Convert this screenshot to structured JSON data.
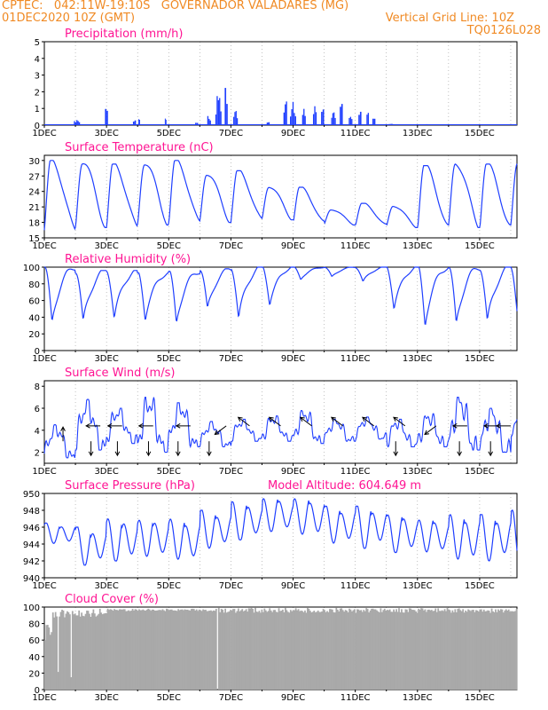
{
  "header": {
    "line1": "CPTEC:   042:11W-19:10S   GOVERNADOR VALADARES (MG)",
    "line2": "01DEC2020 10Z (GMT)",
    "grid_note": "Vertical Grid Line: 10Z",
    "code": "TQ0126L028"
  },
  "colors": {
    "series": "#1f3fff",
    "cloud": "#a9a9a9",
    "title": "#ff1493",
    "header": "#f08a24",
    "grid": "#999999"
  },
  "chart_data": [
    {
      "type": "bar",
      "title": "Precipitation (mm/h)",
      "ylim": [
        0,
        5
      ],
      "yticks": [
        "0",
        "1",
        "2",
        "3",
        "4",
        "5"
      ],
      "xticks": [
        "1DEC",
        "3DEC",
        "5DEC",
        "7DEC",
        "9DEC",
        "11DEC",
        "13DEC",
        "15DEC"
      ],
      "x_range_days": [
        0,
        15
      ],
      "events": [
        {
          "day": 1.05,
          "width": 0.2,
          "peak": 0.4
        },
        {
          "day": 2.0,
          "width": 0.1,
          "peak": 1.3
        },
        {
          "day": 2.9,
          "width": 0.1,
          "peak": 0.5
        },
        {
          "day": 3.05,
          "width": 0.05,
          "peak": 0.6
        },
        {
          "day": 3.9,
          "width": 0.05,
          "peak": 0.5
        },
        {
          "day": 4.9,
          "width": 0.1,
          "peak": 0.3
        },
        {
          "day": 5.3,
          "width": 0.12,
          "peak": 0.8
        },
        {
          "day": 5.6,
          "width": 0.2,
          "peak": 2.0
        },
        {
          "day": 5.85,
          "width": 0.1,
          "peak": 2.6
        },
        {
          "day": 6.15,
          "width": 0.15,
          "peak": 1.2
        },
        {
          "day": 7.2,
          "width": 0.1,
          "peak": 0.2
        },
        {
          "day": 7.75,
          "width": 0.12,
          "peak": 2.2
        },
        {
          "day": 8.0,
          "width": 0.2,
          "peak": 1.4
        },
        {
          "day": 8.35,
          "width": 0.12,
          "peak": 1.0
        },
        {
          "day": 8.7,
          "width": 0.12,
          "peak": 1.2
        },
        {
          "day": 8.95,
          "width": 0.1,
          "peak": 1.8
        },
        {
          "day": 9.3,
          "width": 0.15,
          "peak": 1.0
        },
        {
          "day": 9.55,
          "width": 0.1,
          "peak": 1.6
        },
        {
          "day": 9.85,
          "width": 0.12,
          "peak": 0.8
        },
        {
          "day": 10.15,
          "width": 0.1,
          "peak": 1.0
        },
        {
          "day": 10.4,
          "width": 0.08,
          "peak": 1.4
        },
        {
          "day": 10.6,
          "width": 0.1,
          "peak": 0.5
        },
        {
          "day": 11.2,
          "width": 0.25,
          "peak": 0.12
        },
        {
          "day": 12.3,
          "width": 0.2,
          "peak": 0.06
        },
        {
          "day": 13.2,
          "width": 0.2,
          "peak": 0.05
        },
        {
          "day": 14.5,
          "width": 0.2,
          "peak": 0.05
        }
      ]
    },
    {
      "type": "line",
      "title": "Surface Temperature (nC)",
      "ylim": [
        15,
        31
      ],
      "yticks": [
        "15",
        "18",
        "21",
        "24",
        "27",
        "30"
      ],
      "xticks": [
        "1DEC",
        "3DEC",
        "5DEC",
        "7DEC",
        "9DEC",
        "11DEC",
        "13DEC",
        "15DEC"
      ],
      "x_range_days": [
        0,
        15
      ],
      "daily_min": [
        16.5,
        17.0,
        17.0,
        17.5,
        18.0,
        18.0,
        18.5,
        18.5,
        18.0,
        17.5,
        17.5,
        17.0,
        17.0,
        17.0,
        17.0,
        16.8
      ],
      "daily_max": [
        30.0,
        29.8,
        29.3,
        29.6,
        30.0,
        27.5,
        28.0,
        25.0,
        24.8,
        20.5,
        21.7,
        21.2,
        29.0,
        29.5,
        29.3,
        29.5
      ]
    },
    {
      "type": "line",
      "title": "Relative Humidity (%)",
      "ylim": [
        0,
        100
      ],
      "yticks": [
        "0",
        "20",
        "40",
        "60",
        "80",
        "100"
      ],
      "xticks": [
        "1DEC",
        "3DEC",
        "5DEC",
        "7DEC",
        "9DEC",
        "11DEC",
        "13DEC",
        "15DEC"
      ],
      "x_range_days": [
        0,
        15
      ],
      "daily_max": [
        100,
        96,
        96,
        93,
        95,
        98,
        100,
        100,
        100,
        100,
        100,
        100,
        100,
        100,
        100,
        100
      ],
      "daily_min": [
        32,
        32,
        38,
        37,
        32,
        48,
        37,
        55,
        85,
        88,
        82,
        50,
        30,
        30,
        32,
        28
      ]
    },
    {
      "type": "line",
      "title": "Surface Wind (m/s)",
      "ylim": [
        1,
        8.5
      ],
      "yticks": [
        "2",
        "4",
        "6",
        "8"
      ],
      "xticks": [
        "1DEC",
        "3DEC",
        "5DEC",
        "7DEC",
        "9DEC",
        "11DEC",
        "13DEC",
        "15DEC"
      ],
      "x_range_days": [
        0,
        15
      ],
      "daily_peak": [
        4.5,
        6.8,
        6.0,
        7.0,
        6.5,
        4.8,
        5.0,
        5.3,
        5.8,
        5.0,
        5.2,
        5.0,
        5.5,
        7.0,
        6.0,
        5.5
      ],
      "daily_trough": [
        1.5,
        2.2,
        2.8,
        2.0,
        2.5,
        2.5,
        3.0,
        3.0,
        2.8,
        3.0,
        3.2,
        2.5,
        2.5,
        2.2,
        2.0,
        3.5
      ],
      "arrows": [
        {
          "day": 0.6,
          "dir": "N",
          "speed": 2
        },
        {
          "day": 1.8,
          "dir": "W",
          "speed": 2
        },
        {
          "day": 2.5,
          "dir": "W",
          "speed": 2
        },
        {
          "day": 1.5,
          "dir": "S",
          "speed": 2
        },
        {
          "day": 2.35,
          "dir": "S",
          "speed": 2
        },
        {
          "day": 3.5,
          "dir": "W",
          "speed": 2
        },
        {
          "day": 3.35,
          "dir": "S",
          "speed": 2
        },
        {
          "day": 4.3,
          "dir": "S",
          "speed": 2
        },
        {
          "day": 4.7,
          "dir": "W",
          "speed": 2
        },
        {
          "day": 5.3,
          "dir": "S",
          "speed": 2
        },
        {
          "day": 5.85,
          "dir": "SW",
          "speed": 2
        },
        {
          "day": 6.6,
          "dir": "NW",
          "speed": 2
        },
        {
          "day": 7.6,
          "dir": "NW",
          "speed": 2
        },
        {
          "day": 8.6,
          "dir": "NW",
          "speed": 2
        },
        {
          "day": 9.6,
          "dir": "NW",
          "speed": 2
        },
        {
          "day": 10.6,
          "dir": "NW",
          "speed": 2
        },
        {
          "day": 11.6,
          "dir": "NW",
          "speed": 2
        },
        {
          "day": 12.6,
          "dir": "SW",
          "speed": 2
        },
        {
          "day": 13.6,
          "dir": "W",
          "speed": 2
        },
        {
          "day": 14.6,
          "dir": "W",
          "speed": 2
        },
        {
          "day": 11.3,
          "dir": "S",
          "speed": 2
        },
        {
          "day": 13.35,
          "dir": "S",
          "speed": 2
        },
        {
          "day": 14.35,
          "dir": "S",
          "speed": 2
        },
        {
          "day": 15.0,
          "dir": "W",
          "speed": 2
        }
      ]
    },
    {
      "type": "line",
      "title": "Surface Pressure (hPa)",
      "annotation": "Model Altitude: 604.649  m",
      "ylim": [
        940,
        950
      ],
      "yticks": [
        "940",
        "942",
        "944",
        "946",
        "948",
        "950"
      ],
      "xticks": [
        "1DEC",
        "3DEC",
        "5DEC",
        "7DEC",
        "9DEC",
        "11DEC",
        "13DEC",
        "15DEC"
      ],
      "x_range_days": [
        0,
        15
      ],
      "daily_max": [
        946.5,
        946.0,
        947.0,
        947.0,
        947.0,
        948.0,
        949.0,
        949.5,
        949.5,
        948.5,
        948.5,
        947.5,
        947.0,
        947.5,
        947.5,
        948.0
      ],
      "daily_min": [
        944.0,
        941.5,
        942.0,
        942.5,
        942.0,
        943.5,
        944.5,
        945.5,
        945.0,
        944.0,
        943.5,
        943.0,
        943.0,
        942.0,
        942.0,
        941.0
      ]
    },
    {
      "type": "bar",
      "title": "Cloud Cover (%)",
      "ylim": [
        0,
        100
      ],
      "yticks": [
        "0",
        "20",
        "40",
        "60",
        "80",
        "100"
      ],
      "xticks": [
        "1DEC",
        "3DEC",
        "5DEC",
        "7DEC",
        "9DEC",
        "11DEC",
        "13DEC",
        "15DEC"
      ],
      "x_range_days": [
        0,
        15
      ],
      "description_values": {
        "early_min": 15,
        "dip_day_2": 18,
        "typical": 97,
        "gap_day": 5.55
      }
    }
  ]
}
